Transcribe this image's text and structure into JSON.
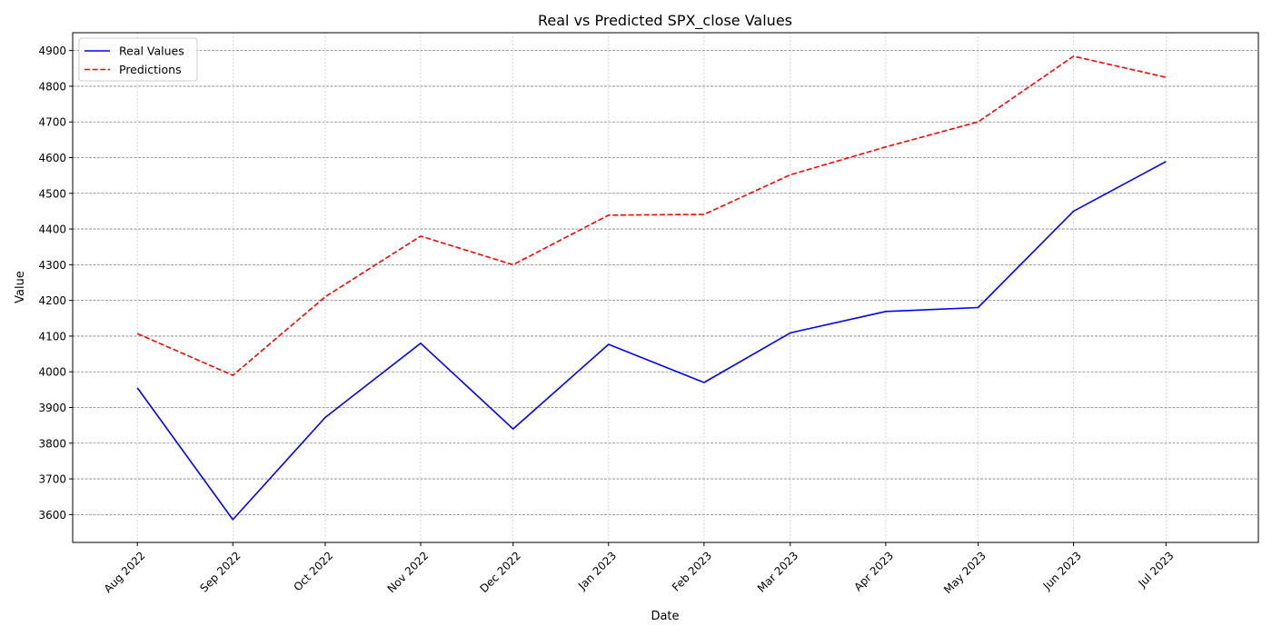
{
  "chart_data": {
    "type": "line",
    "title": "Real vs Predicted SPX_close Values",
    "xlabel": "Date",
    "ylabel": "Value",
    "x": [
      "2022-08-01",
      "2022-09-01",
      "2022-10-01",
      "2022-11-01",
      "2022-12-01",
      "2023-01-01",
      "2023-02-01",
      "2023-03-01",
      "2023-04-01",
      "2023-05-01",
      "2023-06-01",
      "2023-07-01"
    ],
    "x_tick_labels": [
      "Aug 2022",
      "Sep 2022",
      "Oct 2022",
      "Nov 2022",
      "Dec 2022",
      "Jan 2023",
      "Feb 2023",
      "Mar 2023",
      "Apr 2023",
      "May 2023",
      "Jun 2023",
      "Jul 2023"
    ],
    "xlim": [
      "2022-07-11",
      "2023-07-31"
    ],
    "ylim": [
      3522,
      4950
    ],
    "y_ticks": [
      3600,
      3700,
      3800,
      3900,
      4000,
      4100,
      4200,
      4300,
      4400,
      4500,
      4600,
      4700,
      4800,
      4900
    ],
    "grid": true,
    "legend": "top-left",
    "series": [
      {
        "name": "Real Values",
        "color": "#0000ff",
        "style": "solid",
        "values": [
          3955,
          3586,
          3872,
          4080,
          3840,
          4077,
          3970,
          4109,
          4169,
          4180,
          4450,
          4589
        ]
      },
      {
        "name": "Predictions",
        "color": "#ff0000",
        "style": "dashed",
        "values": [
          4107,
          3990,
          4210,
          4380,
          4300,
          4439,
          4441,
          4552,
          4630,
          4700,
          4884,
          4825
        ]
      }
    ]
  }
}
